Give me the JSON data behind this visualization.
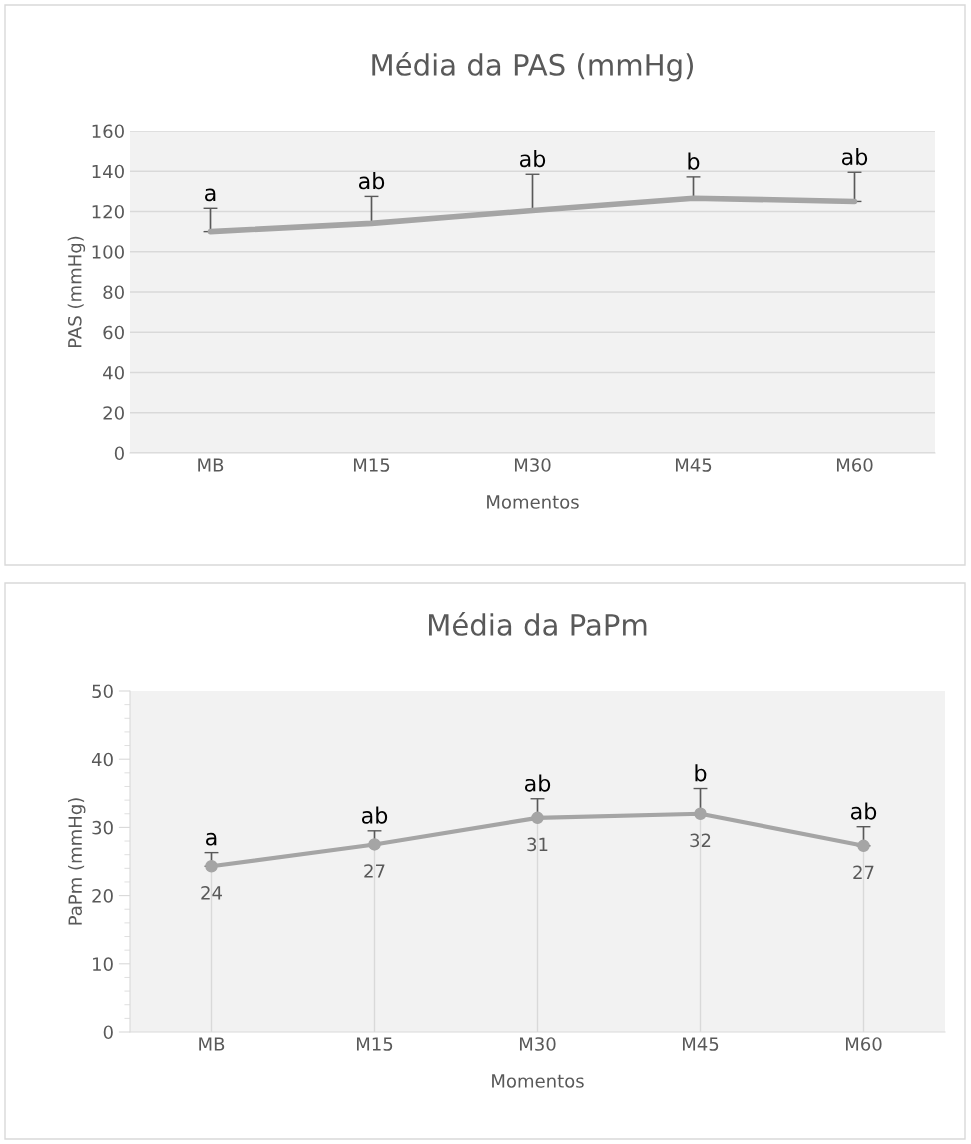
{
  "chart_data": [
    {
      "type": "line",
      "title": "Média da PAS (mmHg)",
      "xlabel": "Momentos",
      "ylabel": "PAS (mmHg)",
      "categories": [
        "MB",
        "M15",
        "M30",
        "M45",
        "M60"
      ],
      "series": [
        {
          "color": "#a5a5a5",
          "values": [
            110,
            114.1,
            120.5,
            126.6,
            125
          ],
          "errors": [
            [
              110,
              121.6
            ],
            [
              114.1,
              127.5
            ],
            [
              120.5,
              138.5
            ],
            [
              126.6,
              137.2
            ],
            [
              125,
              139.5
            ]
          ]
        }
      ],
      "ylim": [
        0,
        160
      ],
      "yticks": [
        0,
        20,
        40,
        60,
        80,
        100,
        120,
        140,
        160
      ],
      "grid": "y",
      "marker": "none",
      "line_style": "solid",
      "annotations": [
        "a",
        "ab",
        "ab",
        "b",
        "ab"
      ]
    },
    {
      "type": "line",
      "title": "Média da PaPm",
      "xlabel": "Momentos",
      "ylabel": "PaPm (mmHg)",
      "categories": [
        "MB",
        "M15",
        "M30",
        "M45",
        "M60"
      ],
      "series": [
        {
          "color": "#a5a5a5",
          "values": [
            24.3,
            27.5,
            31.4,
            32.0,
            27.3
          ],
          "value_labels": [
            "24",
            "27",
            "31",
            "32",
            "27"
          ],
          "errors": [
            [
              24.3,
              26.3
            ],
            [
              27.5,
              29.5
            ],
            [
              31.4,
              34.2
            ],
            [
              32.0,
              35.7
            ],
            [
              27.3,
              30.1
            ]
          ]
        }
      ],
      "ylim": [
        0,
        50
      ],
      "yticks": [
        0,
        10,
        20,
        30,
        40,
        50
      ],
      "grid": false,
      "marker": "circle",
      "line_style": "solid",
      "annotations": [
        "a",
        "ab",
        "ab",
        "b",
        "ab"
      ]
    }
  ]
}
